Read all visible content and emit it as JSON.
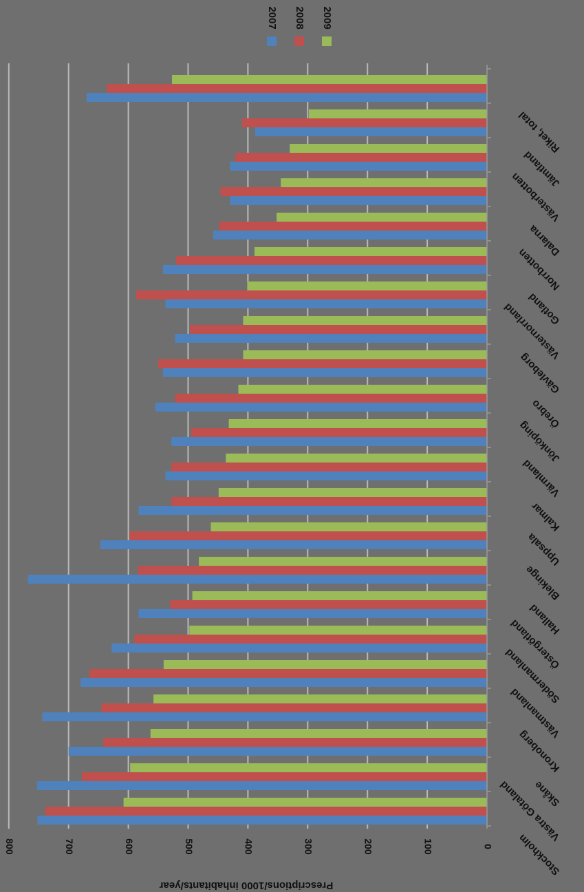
{
  "chart_data": {
    "type": "bar",
    "orientation": "horizontal",
    "rotated_180": true,
    "title": "",
    "xlabel": "Prescriptions/1000 inhabitants/year",
    "ylabel": "",
    "xlim": [
      0,
      800
    ],
    "ticks": [
      "0",
      "100",
      "200",
      "300",
      "400",
      "500",
      "600",
      "700",
      "800"
    ],
    "tick_values": [
      0,
      100,
      200,
      300,
      400,
      500,
      600,
      700,
      800
    ],
    "grid": true,
    "legend_position": "top",
    "categories": [
      "Stockholm",
      "Västra Götaland",
      "Skåne",
      "Kronoberg",
      "Västmanland",
      "Södermanland",
      "Östergötland",
      "Halland",
      "Blekinge",
      "Uppsala",
      "Kalmar",
      "Värmland",
      "Jönköping",
      "Örebro",
      "Gävleborg",
      "Västernorrland",
      "Gotland",
      "Norrbotten",
      "Dalarna",
      "Västerbotten",
      "Jämtland",
      "Riket, total"
    ],
    "series": [
      {
        "name": "2007",
        "color": "#4f81bd",
        "values": [
          752,
          753,
          700,
          744,
          680,
          628,
          583,
          768,
          647,
          583,
          538,
          528,
          555,
          542,
          522,
          538,
          542,
          458,
          430,
          430,
          388,
          670
        ]
      },
      {
        "name": "2008",
        "color": "#c0504d",
        "values": [
          739,
          678,
          642,
          645,
          665,
          590,
          530,
          584,
          598,
          528,
          528,
          495,
          522,
          550,
          497,
          587,
          520,
          448,
          446,
          421,
          410,
          636
        ]
      },
      {
        "name": "2009",
        "color": "#9bbb59",
        "values": [
          608,
          597,
          563,
          558,
          541,
          498,
          493,
          482,
          462,
          449,
          437,
          432,
          416,
          408,
          408,
          401,
          389,
          352,
          345,
          330,
          298,
          527
        ]
      }
    ]
  }
}
